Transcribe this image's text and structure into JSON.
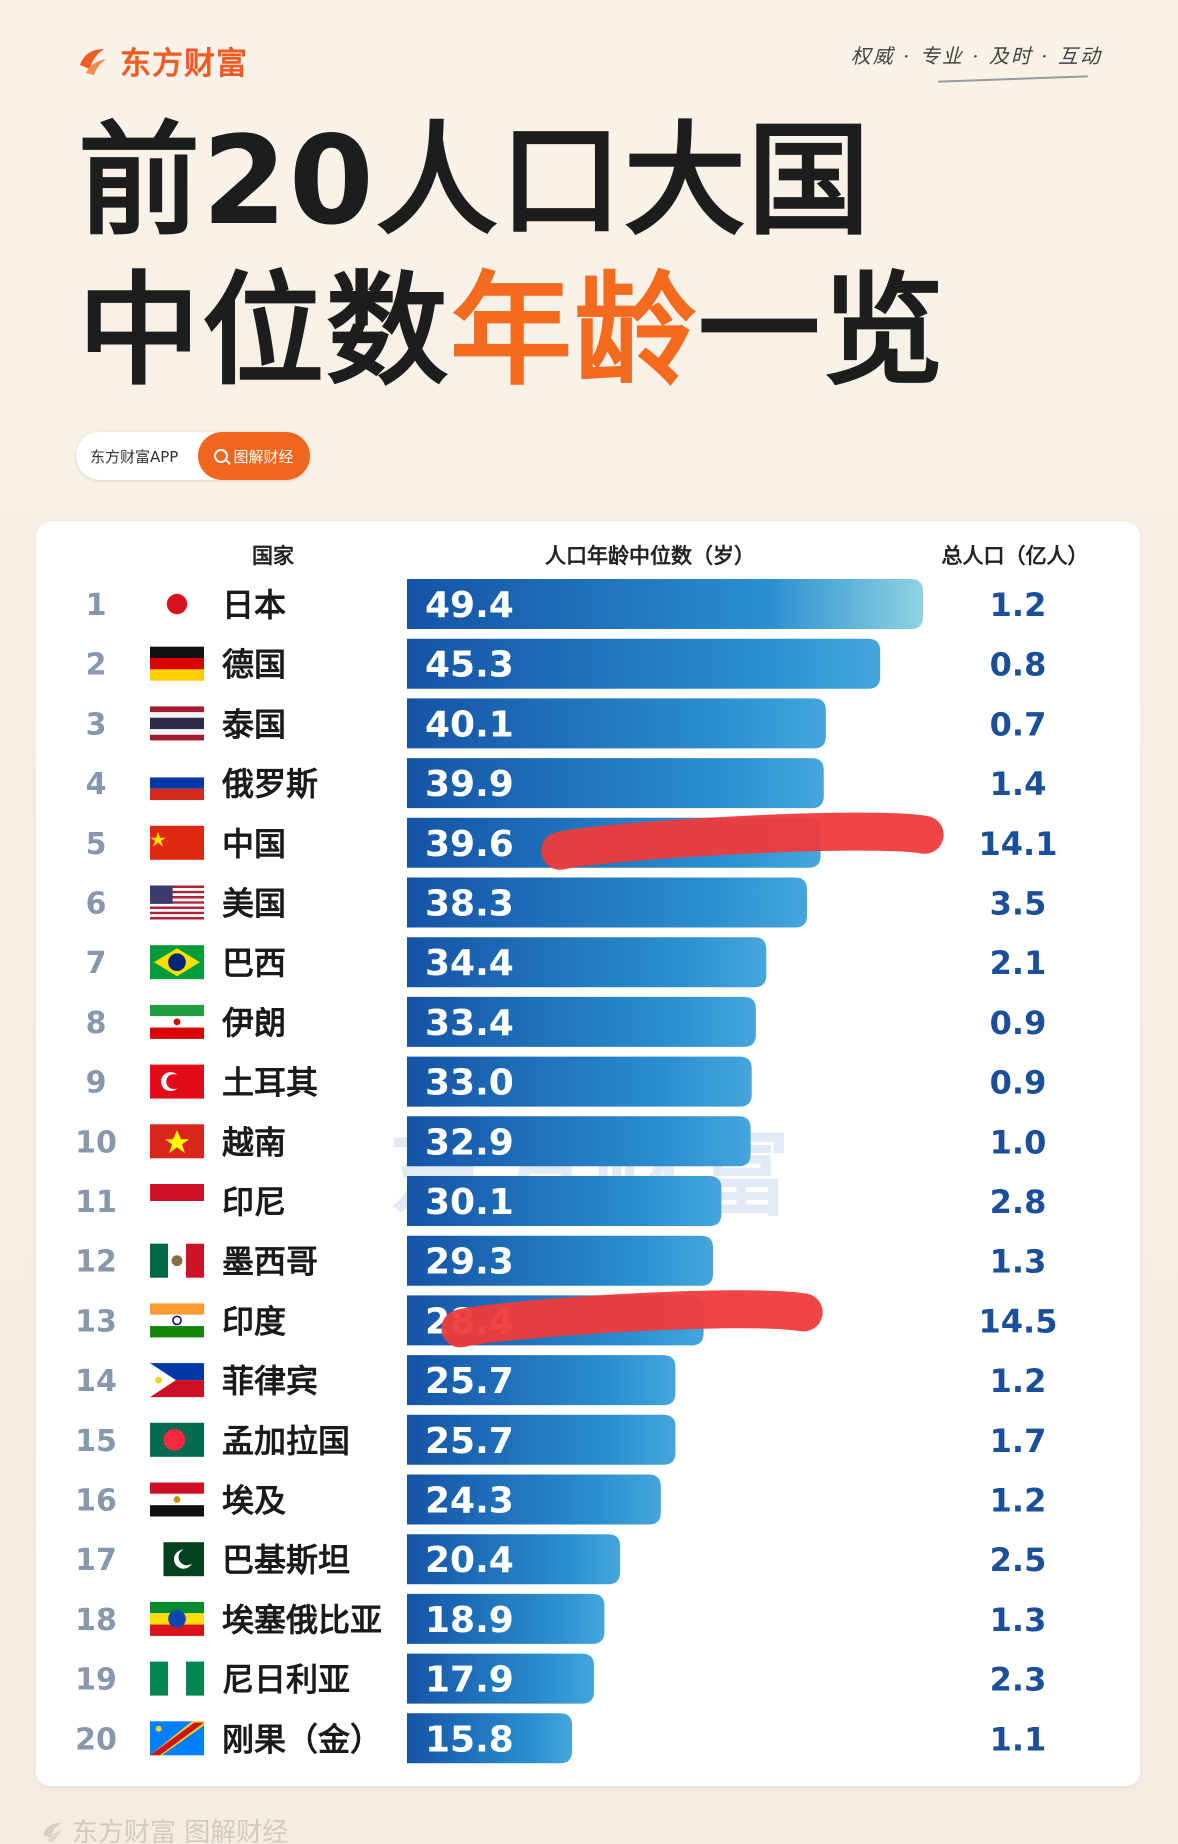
{
  "brand": {
    "name": "东方财富",
    "slogan": "权威 · 专业 · 及时 · 互动"
  },
  "title": {
    "line1": "前20人口大国",
    "line2_prefix": "中位数",
    "line2_accent": "年龄",
    "line2_suffix": "一览"
  },
  "search_chip": {
    "text": "东方财富APP",
    "button_label": "图解财经"
  },
  "columns": {
    "country": "国家",
    "median_age": "人口年龄中位数（岁）",
    "population": "总人口（亿人）"
  },
  "watermark": "东方财富",
  "footer": "东方财富 图解财经",
  "colors": {
    "bar_dark": "#1553a6",
    "bar_light": "#2a8fd0",
    "bar_end_light": "#8fd3e3",
    "highlight_strike": "#ee3b3b",
    "accent_orange": "#f46a1e"
  },
  "chart_data": {
    "type": "bar",
    "orientation": "horizontal",
    "title": "前20人口大国中位数年龄一览",
    "xlabel": "人口年龄中位数（岁）",
    "xlim": [
      0,
      49.4
    ],
    "grid": false,
    "rows": [
      {
        "rank": "1",
        "country": "日本",
        "flag": "japan",
        "median_age": 49.4,
        "population": "1.2"
      },
      {
        "rank": "2",
        "country": "德国",
        "flag": "germany",
        "median_age": 45.3,
        "population": "0.8"
      },
      {
        "rank": "3",
        "country": "泰国",
        "flag": "thailand",
        "median_age": 40.1,
        "population": "0.7"
      },
      {
        "rank": "4",
        "country": "俄罗斯",
        "flag": "russia",
        "median_age": 39.9,
        "population": "1.4"
      },
      {
        "rank": "5",
        "country": "中国",
        "flag": "china",
        "median_age": 39.6,
        "population": "14.1",
        "highlight": true
      },
      {
        "rank": "6",
        "country": "美国",
        "flag": "usa",
        "median_age": 38.3,
        "population": "3.5"
      },
      {
        "rank": "7",
        "country": "巴西",
        "flag": "brazil",
        "median_age": 34.4,
        "population": "2.1"
      },
      {
        "rank": "8",
        "country": "伊朗",
        "flag": "iran",
        "median_age": 33.4,
        "population": "0.9"
      },
      {
        "rank": "9",
        "country": "土耳其",
        "flag": "turkey",
        "median_age": 33.0,
        "population": "0.9"
      },
      {
        "rank": "10",
        "country": "越南",
        "flag": "vietnam",
        "median_age": 32.9,
        "population": "1.0"
      },
      {
        "rank": "11",
        "country": "印尼",
        "flag": "indonesia",
        "median_age": 30.1,
        "population": "2.8"
      },
      {
        "rank": "12",
        "country": "墨西哥",
        "flag": "mexico",
        "median_age": 29.3,
        "population": "1.3"
      },
      {
        "rank": "13",
        "country": "印度",
        "flag": "india",
        "median_age": 28.4,
        "population": "14.5",
        "highlight": true
      },
      {
        "rank": "14",
        "country": "菲律宾",
        "flag": "philippines",
        "median_age": 25.7,
        "population": "1.2"
      },
      {
        "rank": "15",
        "country": "孟加拉国",
        "flag": "bangladesh",
        "median_age": 25.7,
        "population": "1.7"
      },
      {
        "rank": "16",
        "country": "埃及",
        "flag": "egypt",
        "median_age": 24.3,
        "population": "1.2"
      },
      {
        "rank": "17",
        "country": "巴基斯坦",
        "flag": "pakistan",
        "median_age": 20.4,
        "population": "2.5"
      },
      {
        "rank": "18",
        "country": "埃塞俄比亚",
        "flag": "ethiopia",
        "median_age": 18.9,
        "population": "1.3"
      },
      {
        "rank": "19",
        "country": "尼日利亚",
        "flag": "nigeria",
        "median_age": 17.9,
        "population": "2.3"
      },
      {
        "rank": "20",
        "country": "刚果（金）",
        "flag": "drcongo",
        "median_age": 15.8,
        "population": "1.1"
      }
    ]
  }
}
